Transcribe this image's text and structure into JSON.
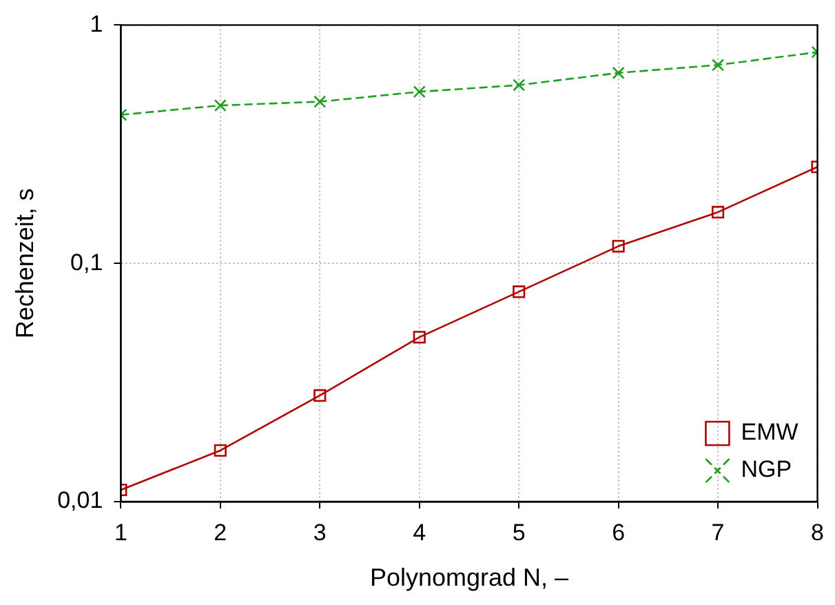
{
  "chart_data": {
    "type": "line",
    "xlabel": "Polynomgrad N, –",
    "ylabel": "Rechenzeit, s",
    "x": [
      1,
      2,
      3,
      4,
      5,
      6,
      7,
      8
    ],
    "series": [
      {
        "name": "EMW",
        "color": "#b00000",
        "values": [
          0.0112,
          0.0164,
          0.0279,
          0.049,
          0.076,
          0.118,
          0.164,
          0.254
        ],
        "marker": "square",
        "line_style": "solid"
      },
      {
        "name": "NGP",
        "color": "#20a020",
        "values": [
          0.42,
          0.46,
          0.477,
          0.525,
          0.56,
          0.63,
          0.68,
          0.77
        ],
        "marker": "cross",
        "line_style": "dashed"
      }
    ],
    "log": "y",
    "xlim": [
      1,
      8
    ],
    "xticks": [
      1,
      2,
      3,
      4,
      5,
      6,
      7,
      8
    ],
    "ylim": [
      0.01,
      1
    ],
    "yticks": [
      {
        "value": 0.01,
        "label": "0,01"
      },
      {
        "value": 0.1,
        "label": "0,1"
      },
      {
        "value": 1,
        "label": "1"
      }
    ],
    "grid": true,
    "legend": "bottom right"
  }
}
